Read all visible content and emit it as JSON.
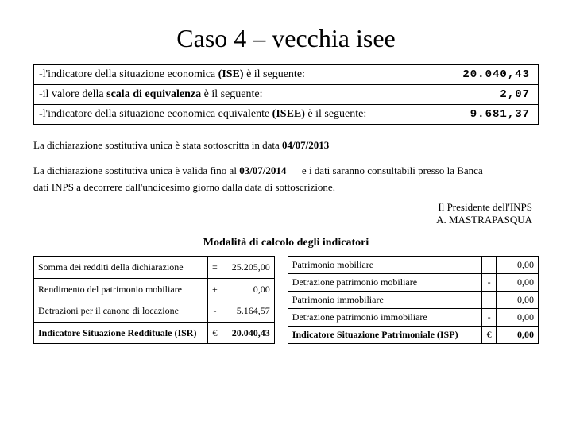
{
  "title": "Caso 4 – vecchia isee",
  "main_rows": [
    {
      "label_pre": "-l'indicatore della situazione economica ",
      "label_bold": "(ISE)",
      "label_post": " è il seguente:",
      "value": "20.040,43"
    },
    {
      "label_pre": "-il valore della ",
      "label_bold": "scala di equivalenza",
      "label_post": " è il seguente:",
      "value": "2,07"
    },
    {
      "label_pre": "-l'indicatore della situazione economica equivalente ",
      "label_bold": "(ISEE)",
      "label_post": " è il seguente:",
      "value": "9.681,37"
    }
  ],
  "declaration1": {
    "text": "La dichiarazione sostitutiva unica è stata sottoscritta in data",
    "date": "04/07/2013"
  },
  "declaration2": {
    "pre": "La dichiarazione sostitutiva unica è valida fino al",
    "date": "03/07/2014",
    "post1": "e i dati saranno consultabili presso la Banca",
    "post2": "dati INPS a decorrere dall'undicesimo giorno dalla data di sottoscrizione."
  },
  "signature_line1": "Il Presidente dell'INPS",
  "signature_line2": "A. MASTRAPASQUA",
  "section_title": "Modalità di calcolo degli indicatori",
  "left_rows": [
    {
      "label": "Somma dei redditi della dichiarazione",
      "op": "=",
      "val": "25.205,00",
      "bold": false
    },
    {
      "label": "Rendimento del patrimonio mobiliare",
      "op": "+",
      "val": "0,00",
      "bold": false
    },
    {
      "label": "Detrazioni per il canone di locazione",
      "op": "-",
      "val": "5.164,57",
      "bold": false
    },
    {
      "label": "Indicatore Situazione Reddituale (ISR)",
      "op": "€",
      "val": "20.040,43",
      "bold": true
    }
  ],
  "right_rows": [
    {
      "label": "Patrimonio mobiliare",
      "op": "+",
      "val": "0,00",
      "bold": false
    },
    {
      "label": "Detrazione patrimonio mobiliare",
      "op": "-",
      "val": "0,00",
      "bold": false
    },
    {
      "label": "Patrimonio immobiliare",
      "op": "+",
      "val": "0,00",
      "bold": false
    },
    {
      "label": "Detrazione patrimonio immobiliare",
      "op": "-",
      "val": "0,00",
      "bold": false
    },
    {
      "label": "Indicatore Situazione Patrimoniale (ISP)",
      "op": "€",
      "val": "0,00",
      "bold": true
    }
  ]
}
